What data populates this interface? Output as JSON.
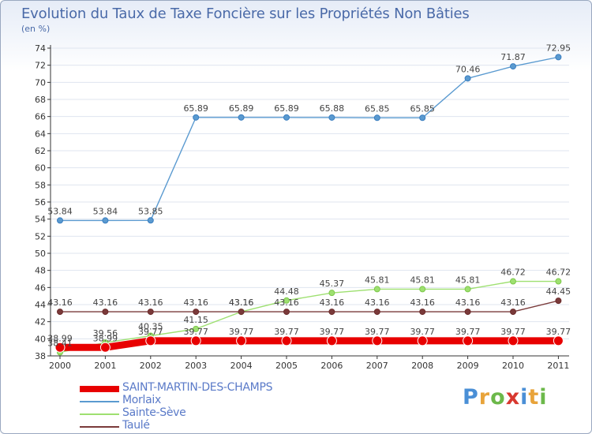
{
  "title": "Evolution du Taux de Taxe Foncière sur les Propriétés Non Bâties",
  "unit_label": "(en %)",
  "brand": {
    "text": "Proxiti",
    "letter_colors": [
      "#4a8fd6",
      "#e8a33a",
      "#6cb84a",
      "#d8382f",
      "#4a8fd6",
      "#e8a33a",
      "#6cb84a"
    ]
  },
  "chart_data": {
    "type": "line",
    "x": [
      2000,
      2001,
      2002,
      2003,
      2004,
      2005,
      2006,
      2007,
      2008,
      2009,
      2010,
      2011
    ],
    "ylim": [
      38,
      74
    ],
    "yticks": [
      38,
      40,
      42,
      44,
      46,
      48,
      50,
      52,
      54,
      56,
      58,
      60,
      62,
      64,
      66,
      68,
      70,
      72,
      74
    ],
    "legend_position": "bottom-left",
    "series": [
      {
        "name": "SAINT-MARTIN-DES-CHAMPS",
        "color": "#e80000",
        "thick": true,
        "values": [
          38.99,
          38.99,
          39.77,
          39.77,
          39.77,
          39.77,
          39.77,
          39.77,
          39.77,
          39.77,
          39.77,
          39.77
        ],
        "labels": [
          "38.99",
          "38.99",
          "39.77",
          "39.77",
          "39.77",
          "39.77",
          "39.77",
          "39.77",
          "39.77",
          "39.77",
          "39.77",
          "39.77"
        ]
      },
      {
        "name": "Morlaix",
        "color": "#5a9ad0",
        "point": "#3a7ec0",
        "thick": false,
        "values": [
          53.84,
          53.84,
          53.85,
          65.89,
          65.89,
          65.89,
          65.88,
          65.85,
          65.85,
          70.46,
          71.87,
          72.95
        ],
        "labels": [
          "53.84",
          "53.84",
          "53.85",
          "65.89",
          "65.89",
          "65.89",
          "65.88",
          "65.85",
          "65.85",
          "70.46",
          "71.87",
          "72.95"
        ]
      },
      {
        "name": "Sainte-Sève",
        "color": "#9ee070",
        "point": "#7cc84a",
        "thick": false,
        "values": [
          38.41,
          39.56,
          40.35,
          41.15,
          43.16,
          44.48,
          45.37,
          45.81,
          45.81,
          45.81,
          46.72,
          46.72
        ],
        "labels": [
          "38.41",
          "39.56",
          "40.35",
          "41.15",
          "43.16",
          "44.48",
          "45.37",
          "45.81",
          "45.81",
          "45.81",
          "46.72",
          "46.72"
        ]
      },
      {
        "name": "Taulé",
        "color": "#7a3a3a",
        "point": "#6a2a2a",
        "thick": false,
        "values": [
          43.16,
          43.16,
          43.16,
          43.16,
          43.16,
          43.16,
          43.16,
          43.16,
          43.16,
          43.16,
          43.16,
          44.45
        ],
        "labels": [
          "43.16",
          "43.16",
          "43.16",
          "43.16",
          "43.16",
          "43.16",
          "43.16",
          "43.16",
          "43.16",
          "43.16",
          "43.16",
          "44.45"
        ]
      }
    ]
  }
}
